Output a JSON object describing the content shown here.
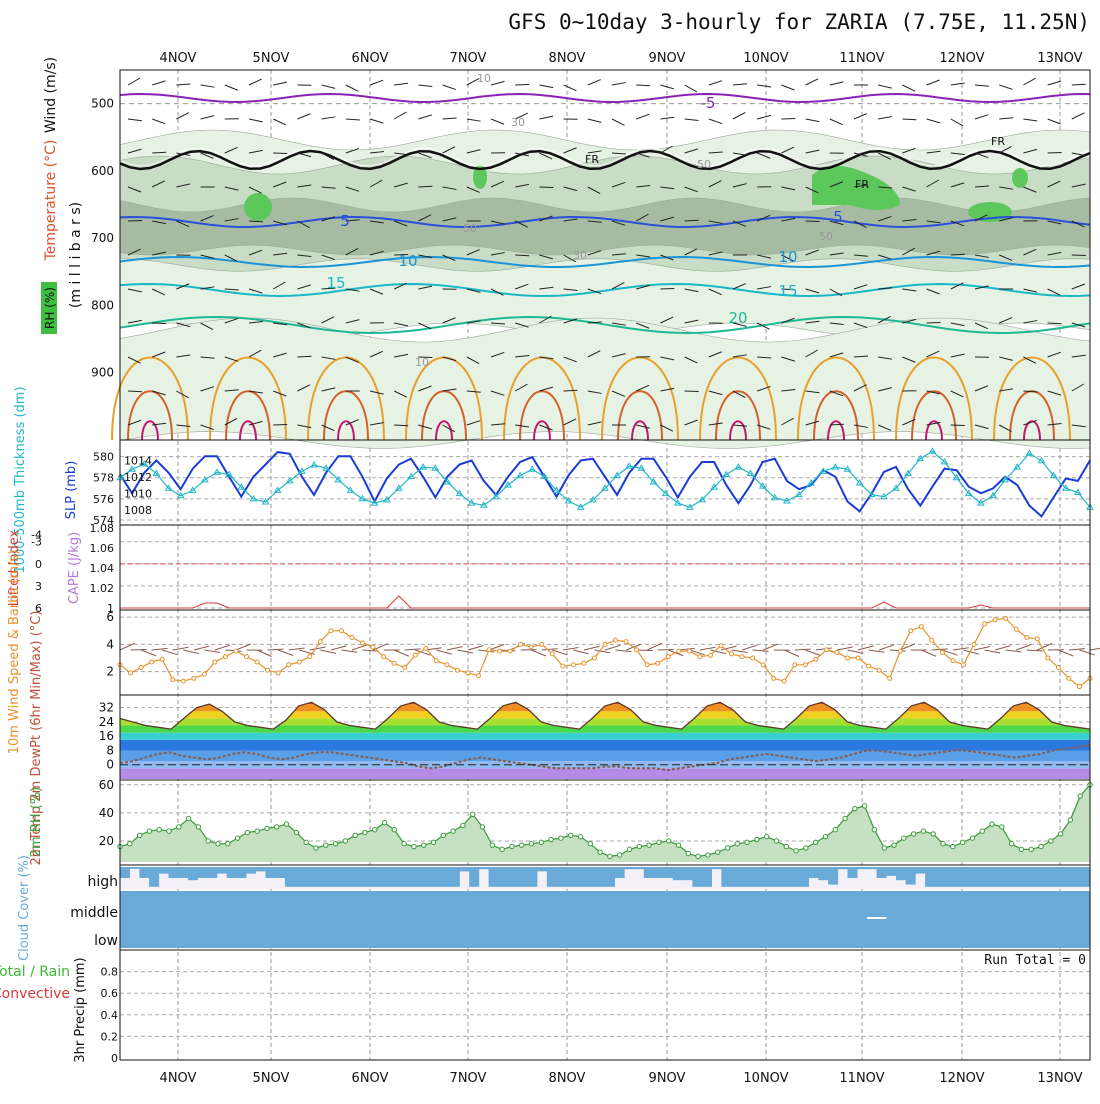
{
  "title": "GFS 0~10day 3-hourly for ZARIA (7.75E, 11.25N)",
  "date_labels": [
    "4NOV",
    "5NOV",
    "6NOV",
    "7NOV",
    "8NOV",
    "9NOV",
    "10NOV",
    "11NOV",
    "12NOV",
    "13NOV"
  ],
  "run_total": "Run Total = 0",
  "colors": {
    "rh_light": "#e6f2e3",
    "rh_mid": "#c9dcc5",
    "rh_dark": "#a7bba3",
    "rh_green": "#5cc85c",
    "t_minus5": "#8a22b5",
    "t_plus5": "#2a50d8",
    "t_10": "#1a96d8",
    "t_15": "#19b7c8",
    "t_20": "#1eb894",
    "t_warm": "#e8a02c",
    "t_hot": "#d4602a",
    "t_hotter": "#c0186c",
    "freezing": "#111111",
    "slp": "#1a3bd6",
    "thickness": "#22b7c8",
    "lifted": "#d43c3c",
    "cape": "#b27ad8",
    "wind_speed": "#e8922c",
    "dewpoint": "#8a5a4a",
    "rh2m": "#3a9a3a",
    "cloud": "#6aaad8",
    "cloud_bg": "#f3f0f8"
  },
  "chart_data": [
    {
      "type": "area",
      "panel": "upper-air",
      "ylabel_parts": [
        "Wind (m/s)",
        "Temperature (°C)",
        "RH (%)",
        "(m i l l i b a r s)"
      ],
      "y_ticks": [
        "500",
        "600",
        "700",
        "800",
        "900"
      ],
      "ylim": [
        1000,
        450
      ],
      "contour_labels": {
        "temperature": [
          "-5",
          "5",
          "5",
          "10",
          "10",
          "15",
          "15",
          "20"
        ],
        "rh": [
          "10",
          "30",
          "50",
          "50",
          "30",
          "50",
          "10"
        ],
        "freezing": [
          "FR",
          "FR",
          "FR"
        ]
      }
    },
    {
      "type": "line",
      "panel": "thickness-slp",
      "ylabel_left": "1000-500mb Thickness (dm)",
      "ylabel_right": "SLP (mb)",
      "y_ticks_left": [
        "574",
        "576",
        "578",
        "580"
      ],
      "y_ticks_right": [
        "1008",
        "1010",
        "1012",
        "1014"
      ],
      "series": [
        {
          "name": "SLP (mb)",
          "values": [
            1012.3,
            1010,
            1012.5,
            1014,
            1012.5,
            1010.5,
            1013,
            1014.5,
            1014.5,
            1012,
            1009.6,
            1012,
            1013.5,
            1015,
            1014.8,
            1012,
            1009.8,
            1012.5,
            1014.5,
            1014.5,
            1012,
            1009,
            1011.8,
            1013.5,
            1014.2,
            1012,
            1009.5,
            1012,
            1013.5,
            1014,
            1011.5,
            1009.8,
            1012,
            1013.8,
            1014.4,
            1012,
            1009.6,
            1012.2,
            1014,
            1014.2,
            1012,
            1009.8,
            1012.5,
            1014.2,
            1014.2,
            1012,
            1009.5,
            1012,
            1013.8,
            1013.8,
            1011,
            1008.8,
            1011,
            1013.8,
            1014.2,
            1011.5,
            1010.5,
            1011,
            1012.8,
            1012,
            1009,
            1007.8,
            1010,
            1012.6,
            1013.2,
            1010.5,
            1008.5,
            1010.8,
            1013,
            1012.8,
            1010.8,
            1010,
            1010.6,
            1012,
            1011,
            1008.5,
            1007.2,
            1009.5,
            1011.8,
            1011.5,
            1014
          ]
        },
        {
          "name": "1000-500mb Thickness (dm)",
          "values": [
            578,
            578.8,
            579.3,
            578.4,
            577,
            576.3,
            576.8,
            577.8,
            578.5,
            578.3,
            577.1,
            576,
            575.7,
            576.8,
            577.7,
            578.6,
            579.2,
            578.9,
            577.8,
            576.8,
            576,
            575.6,
            575.9,
            577,
            578.1,
            579,
            578.9,
            577.6,
            576.5,
            575.6,
            575.4,
            576.2,
            577.3,
            578.2,
            578.8,
            578.1,
            576.8,
            575.8,
            575.2,
            575.9,
            577,
            578.2,
            579.1,
            578.9,
            577.6,
            576.5,
            575.6,
            575.2,
            575.9,
            577.1,
            578.3,
            579,
            578.4,
            577.2,
            576.1,
            575.8,
            576.4,
            577.5,
            578.6,
            579,
            578.8,
            577.5,
            576.4,
            576.2,
            577,
            578.4,
            579.8,
            580.5,
            579.5,
            578,
            576.5,
            575.6,
            576.3,
            577.8,
            579,
            580.3,
            579.6,
            578.2,
            577,
            576.6,
            575.2
          ]
        }
      ]
    },
    {
      "type": "line",
      "panel": "stability",
      "ylabel_left": "Lifted Index",
      "ylabel_right": "CAPE (J/kg)",
      "y_ticks_left": [
        "-4",
        "-3",
        "0",
        "3",
        "6"
      ],
      "y_ticks_right": [
        "1.08",
        "1.06",
        "1.04",
        "1.02",
        "1"
      ],
      "reference_line": 0,
      "series": [
        {
          "name": "CAPE (J/kg)",
          "values": [
            1,
            1,
            1,
            1,
            1,
            1,
            1,
            1.005,
            1.005,
            1,
            1,
            1,
            1,
            1,
            1,
            1,
            1,
            1,
            1,
            1,
            1,
            1,
            1,
            1.012,
            1,
            1,
            1,
            1,
            1,
            1,
            1,
            1,
            1,
            1,
            1,
            1,
            1,
            1,
            1,
            1,
            1,
            1,
            1,
            1,
            1,
            1,
            1,
            1,
            1,
            1,
            1,
            1,
            1,
            1,
            1,
            1,
            1,
            1,
            1,
            1,
            1,
            1,
            1,
            1.006,
            1,
            1,
            1,
            1,
            1,
            1,
            1,
            1.003,
            1,
            1,
            1,
            1,
            1,
            1,
            1,
            1,
            1
          ]
        }
      ]
    },
    {
      "type": "line",
      "panel": "10m-wind",
      "ylabel": "10m Wind Speed & Barbs (m/s)",
      "y_ticks": [
        "2",
        "4",
        "6"
      ],
      "ylim": [
        0.5,
        6.3
      ],
      "series": [
        {
          "name": "Speed",
          "values": [
            2.5,
            1.9,
            2.3,
            2.7,
            2.9,
            1.4,
            1.3,
            1.5,
            1.8,
            2.7,
            3.1,
            3.5,
            3.1,
            2.7,
            2.1,
            1.9,
            2.5,
            2.7,
            3.1,
            4.2,
            5,
            5,
            4.5,
            4.1,
            3.8,
            3.1,
            2.6,
            2.3,
            3.2,
            3.7,
            2.8,
            2.5,
            2.1,
            1.9,
            1.7,
            3.6,
            3.5,
            3.5,
            4,
            3.8,
            4,
            3.3,
            2.4,
            2.5,
            2.6,
            3,
            4,
            4.3,
            4.2,
            3.6,
            2.5,
            2.6,
            3.1,
            3.5,
            3.5,
            3.1,
            3.2,
            3.9,
            3.3,
            3.1,
            3,
            2.5,
            1.5,
            1.3,
            2.5,
            2.5,
            2.9,
            3.6,
            3.4,
            3,
            3,
            2.4,
            2.1,
            1.5,
            3.5,
            5,
            5.3,
            4.3,
            3.4,
            2.8,
            2.5,
            4,
            5.5,
            5.8,
            5.9,
            5.1,
            4.5,
            4.4,
            3,
            2.3,
            1.5,
            0.9,
            1.5
          ]
        }
      ]
    },
    {
      "type": "area",
      "panel": "2m-temperature",
      "ylabel": "2m Temp 2m DewPt (6hr Min/Max) (°C)",
      "y_ticks": [
        "0",
        "8",
        "16",
        "24",
        "32"
      ],
      "ylim": [
        -8,
        38
      ],
      "series": [
        {
          "name": "2m Temp",
          "values": [
            26,
            24,
            22,
            21,
            20,
            26,
            32,
            34,
            30,
            24,
            22,
            21,
            20,
            25,
            33,
            35,
            31,
            24,
            22,
            21,
            20,
            26,
            33,
            35,
            31,
            24,
            22,
            21,
            20,
            26,
            33,
            35,
            31,
            24,
            22,
            21,
            20,
            26,
            33,
            35,
            31,
            24,
            22,
            21,
            20,
            26,
            33,
            35,
            31,
            24,
            22,
            21,
            20,
            26,
            33,
            35,
            31,
            24,
            22,
            21,
            20,
            26,
            33,
            35,
            31,
            24,
            22,
            21,
            20,
            26,
            33,
            35,
            31,
            24,
            22,
            21,
            20
          ]
        },
        {
          "name": "2m DewPt",
          "values": [
            1,
            2,
            4,
            6,
            7,
            5,
            4,
            3,
            4,
            6,
            7,
            6,
            4,
            3,
            4,
            6,
            7,
            7,
            6,
            5,
            4,
            3,
            2,
            1,
            -1,
            -2,
            -1,
            1,
            3,
            4,
            3,
            2,
            1,
            0,
            -1,
            -2,
            -2,
            -2,
            -2,
            -1,
            -1,
            -2,
            -2,
            -2,
            -3,
            -2,
            -1,
            0,
            1,
            3,
            4,
            5,
            6,
            5,
            4,
            3,
            2,
            3,
            4,
            6,
            8,
            8,
            7,
            6,
            5,
            6,
            7,
            8,
            8,
            7,
            6,
            5,
            4,
            5,
            6,
            8,
            9,
            10,
            11
          ]
        }
      ]
    },
    {
      "type": "area",
      "panel": "2m-rh",
      "ylabel": "2m RH (%)",
      "y_ticks": [
        "20",
        "40",
        "60"
      ],
      "ylim": [
        5,
        62
      ],
      "series": [
        {
          "name": "2m RH",
          "values": [
            16,
            18,
            24,
            27,
            28,
            27,
            30,
            36,
            30,
            20,
            18,
            18,
            22,
            26,
            27,
            29,
            30,
            32,
            26,
            19,
            15,
            17,
            18,
            20,
            24,
            26,
            28,
            33,
            28,
            18,
            16,
            17,
            19,
            24,
            27,
            31,
            39,
            30,
            17,
            14,
            16,
            17,
            18,
            19,
            21,
            22,
            24,
            23,
            18,
            12,
            9,
            10,
            14,
            16,
            17,
            19,
            20,
            17,
            11,
            9,
            10,
            12,
            15,
            18,
            19,
            21,
            23,
            20,
            16,
            13,
            15,
            19,
            23,
            28,
            36,
            43,
            45,
            28,
            15,
            17,
            22,
            25,
            27,
            25,
            18,
            16,
            19,
            22,
            27,
            32,
            30,
            18,
            14,
            14,
            16,
            20,
            25,
            35,
            52,
            60
          ]
        }
      ]
    },
    {
      "type": "bar",
      "panel": "cloud-cover",
      "ylabel": "Cloud Cover (%)",
      "category_labels": [
        "high",
        "middle",
        "low"
      ],
      "series": [
        {
          "name": "high",
          "values": [
            50,
            8,
            50,
            90,
            30,
            50,
            50,
            60,
            50,
            50,
            30,
            50,
            50,
            30,
            20,
            50,
            50,
            90,
            90,
            90,
            90,
            90,
            90,
            90,
            90,
            90,
            90,
            90,
            90,
            90,
            90,
            90,
            90,
            90,
            90,
            20,
            90,
            10,
            90,
            90,
            90,
            90,
            90,
            20,
            90,
            90,
            90,
            90,
            90,
            90,
            90,
            50,
            10,
            10,
            50,
            50,
            50,
            60,
            60,
            90,
            90,
            10,
            90,
            90,
            90,
            90,
            90,
            90,
            90,
            90,
            90,
            50,
            60,
            80,
            10,
            50,
            10,
            10,
            50,
            40,
            60,
            80,
            30,
            90,
            90,
            90,
            90,
            90,
            90,
            90,
            90,
            90,
            90,
            90,
            90,
            90,
            90,
            90,
            90,
            90
          ]
        },
        {
          "name": "middle",
          "values": [
            100,
            100,
            100,
            100,
            100,
            100,
            100,
            100,
            100,
            100,
            100,
            100,
            100,
            100,
            100,
            100,
            100,
            100,
            100,
            100,
            100,
            100,
            100,
            100,
            100,
            100,
            100,
            100,
            100,
            100,
            100,
            100,
            100,
            100,
            100,
            100,
            100,
            100,
            100,
            100,
            100,
            100,
            100,
            100,
            100,
            100,
            100,
            100,
            100,
            100,
            100,
            100,
            100,
            100,
            100,
            100,
            100,
            100,
            100,
            100,
            100,
            100,
            100,
            100,
            100,
            100,
            100,
            100,
            100,
            100,
            100,
            100,
            100,
            100,
            100,
            100,
            100,
            95,
            95,
            100,
            100,
            100,
            100,
            100,
            100,
            100,
            100,
            100,
            100,
            100,
            100,
            100,
            100,
            100,
            100,
            100,
            100,
            100,
            100,
            100
          ]
        }
      ]
    },
    {
      "type": "bar",
      "panel": "precipitation",
      "ylabel": "3hr Precip (mm)",
      "legend": [
        "Total / Rain",
        "Convective"
      ],
      "y_ticks": [
        "0",
        "0.2",
        "0.4",
        "0.6",
        "0.8"
      ],
      "ylim": [
        0,
        1
      ],
      "series": [
        {
          "name": "Total / Rain",
          "values": []
        },
        {
          "name": "Convective",
          "values": []
        }
      ]
    }
  ]
}
